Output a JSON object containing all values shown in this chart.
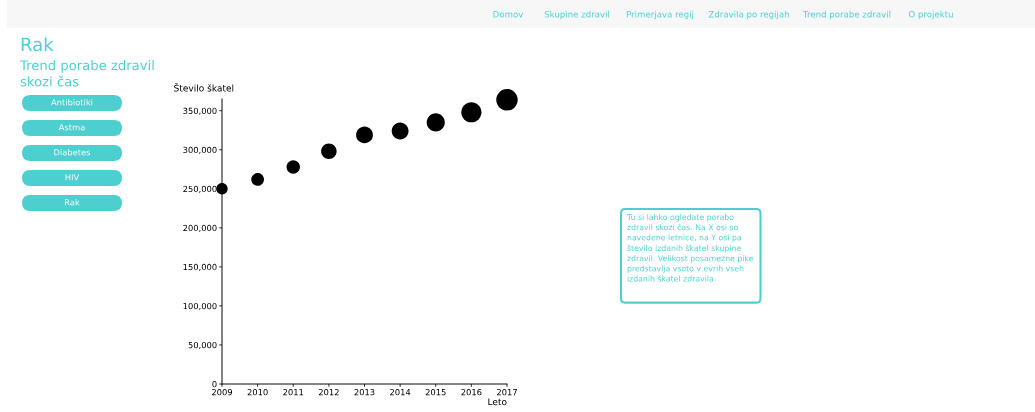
{
  "chart_data": {
    "type": "bubble",
    "title": "Rak",
    "subtitle": "Trend porabe zdravil skozi čas",
    "xlabel": "Leto",
    "ylabel": "Število škatel",
    "x": [
      2009,
      2010,
      2011,
      2012,
      2013,
      2014,
      2015,
      2016,
      2017
    ],
    "values": [
      250000,
      262000,
      278000,
      298000,
      319000,
      324000,
      335000,
      348000,
      364000
    ],
    "sizes": [
      0.28,
      0.35,
      0.39,
      0.52,
      0.61,
      0.61,
      0.71,
      0.88,
      1
    ],
    "color": "#000000",
    "xlim": [
      2009,
      2017
    ],
    "xticks": [
      2009,
      2010,
      2011,
      2012,
      2013,
      2014,
      2015,
      2016,
      2017
    ],
    "ylim": [
      0,
      365000
    ],
    "yticks": [
      {
        "value": 0,
        "label": "0"
      },
      {
        "value": 50000,
        "label": "50,000"
      },
      {
        "value": 100000,
        "label": "100,000"
      },
      {
        "value": 150000,
        "label": "150,000"
      },
      {
        "value": 200000,
        "label": "200,000"
      },
      {
        "value": 250000,
        "label": "250,000"
      },
      {
        "value": 300000,
        "label": "300,000"
      },
      {
        "value": 350000,
        "label": "350,000"
      }
    ],
    "grid": false,
    "legend": false,
    "annotations": [
      "Domov",
      "Skupine zdravil",
      "Primerjava regij",
      "Zdravila po regijah",
      "Trend porabe zdravil",
      "O projektu",
      "Antibiotiki",
      "Astma",
      "Diabetes",
      "HIV",
      "Rak",
      "Tu si lahko ogledate porabo zdravil skozi čas. Na X osi so navedene letnice, na Y osi pa število izdanih škatel skupine zdravil. Velikost posamezne pike predstavlja vsoto v evrih vseh izdanih škatel zdravila."
    ]
  }
}
